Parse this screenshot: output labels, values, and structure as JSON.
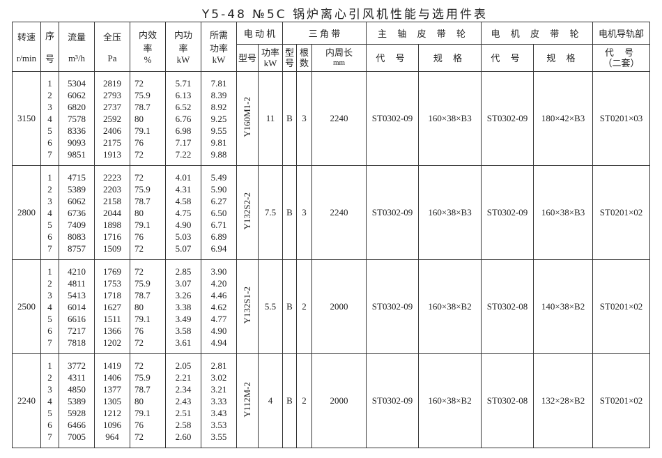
{
  "title": "Y5-48 №5C 锅炉离心引风机性能与选用件表",
  "header": {
    "speed": "转速",
    "speed_unit": "r/min",
    "seq": "序",
    "seq2": "号",
    "flow": "流量",
    "flow_unit": "m³/h",
    "pressure": "全压",
    "pressure_unit": "Pa",
    "eff": "内效",
    "eff2": "率",
    "eff_unit": "%",
    "ipower": "内功",
    "ipower2": "率",
    "ipower_unit": "kW",
    "rpower": "所需",
    "rpower2": "功率",
    "rpower_unit": "kW",
    "motor": "电 动 机",
    "motor_model": "型号",
    "motor_power": "功率",
    "motor_power_unit": "kW",
    "belt": "三 角 带",
    "belt_type": "型号",
    "belt_count": "根数",
    "belt_len": "内周长",
    "belt_len_unit": "mm",
    "main_pulley": "主 轴 皮 带 轮",
    "motor_pulley": "电 机 皮 带 轮",
    "code": "代 号",
    "spec": "规 格",
    "rail": "电机导轨部",
    "rail_code": "代 号",
    "rail_sets": "（二套）"
  },
  "blocks": [
    {
      "speed": "3150",
      "seq": [
        "1",
        "2",
        "3",
        "4",
        "5",
        "6",
        "7"
      ],
      "flow": [
        "5304",
        "6062",
        "6820",
        "7578",
        "8336",
        "9093",
        "9851"
      ],
      "pressure": [
        "2819",
        "2793",
        "2737",
        "2592",
        "2406",
        "2175",
        "1913"
      ],
      "eff": [
        "72",
        "75.9",
        "78.7",
        "80",
        "79.1",
        "76",
        "72"
      ],
      "ipower": [
        "5.71",
        "6.13",
        "6.52",
        "6.76",
        "6.98",
        "7.17",
        "7.22"
      ],
      "rpower": [
        "7.81",
        "8.39",
        "8.92",
        "9.25",
        "9.55",
        "9.81",
        "9.88"
      ],
      "motor_model": "Y160M1-2",
      "motor_power": "11",
      "belt_type": "B",
      "belt_count": "3",
      "belt_len": "2240",
      "main_code": "ST0302-09",
      "main_spec": "160×38×B3",
      "motor_code": "ST0302-09",
      "motor_spec": "180×42×B3",
      "rail": "ST0201×03"
    },
    {
      "speed": "2800",
      "seq": [
        "1",
        "2",
        "3",
        "4",
        "5",
        "6",
        "7"
      ],
      "flow": [
        "4715",
        "5389",
        "6062",
        "6736",
        "7409",
        "8083",
        "8757"
      ],
      "pressure": [
        "2223",
        "2203",
        "2158",
        "2044",
        "1898",
        "1716",
        "1509"
      ],
      "eff": [
        "72",
        "75.9",
        "78.7",
        "80",
        "79.1",
        "76",
        "72"
      ],
      "ipower": [
        "4.01",
        "4.31",
        "4.58",
        "4.75",
        "4.90",
        "5.03",
        "5.07"
      ],
      "rpower": [
        "5.49",
        "5.90",
        "6.27",
        "6.50",
        "6.71",
        "6.89",
        "6.94"
      ],
      "motor_model": "Y132S2-2",
      "motor_power": "7.5",
      "belt_type": "B",
      "belt_count": "3",
      "belt_len": "2240",
      "main_code": "ST0302-09",
      "main_spec": "160×38×B3",
      "motor_code": "ST0302-09",
      "motor_spec": "160×38×B3",
      "rail": "ST0201×02"
    },
    {
      "speed": "2500",
      "seq": [
        "1",
        "2",
        "3",
        "4",
        "5",
        "6",
        "7"
      ],
      "flow": [
        "4210",
        "4811",
        "5413",
        "6014",
        "6616",
        "7217",
        "7818"
      ],
      "pressure": [
        "1769",
        "1753",
        "1718",
        "1627",
        "1511",
        "1366",
        "1202"
      ],
      "eff": [
        "72",
        "75.9",
        "78.7",
        "80",
        "79.1",
        "76",
        "72"
      ],
      "ipower": [
        "2.85",
        "3.07",
        "3.26",
        "3.38",
        "3.49",
        "3.58",
        "3.61"
      ],
      "rpower": [
        "3.90",
        "4.20",
        "4.46",
        "4.62",
        "4.77",
        "4.90",
        "4.94"
      ],
      "motor_model": "Y132S1-2",
      "motor_power": "5.5",
      "belt_type": "B",
      "belt_count": "2",
      "belt_len": "2000",
      "main_code": "ST0302-09",
      "main_spec": "160×38×B2",
      "motor_code": "ST0302-08",
      "motor_spec": "140×38×B2",
      "rail": "ST0201×02"
    },
    {
      "speed": "2240",
      "seq": [
        "1",
        "2",
        "3",
        "4",
        "5",
        "6",
        "7"
      ],
      "flow": [
        "3772",
        "4311",
        "4850",
        "5389",
        "5928",
        "6466",
        "7005"
      ],
      "pressure": [
        "1419",
        "1406",
        "1377",
        "1305",
        "1212",
        "1096",
        "964"
      ],
      "eff": [
        "72",
        "75.9",
        "78.7",
        "80",
        "79.1",
        "76",
        "72"
      ],
      "ipower": [
        "2.05",
        "2.21",
        "2.34",
        "2.43",
        "2.51",
        "2.58",
        "2.60"
      ],
      "rpower": [
        "2.81",
        "3.02",
        "3.21",
        "3.33",
        "3.43",
        "3.53",
        "3.55"
      ],
      "motor_model": "Y112M-2",
      "motor_power": "4",
      "belt_type": "B",
      "belt_count": "2",
      "belt_len": "2000",
      "main_code": "ST0302-09",
      "main_spec": "160×38×B2",
      "motor_code": "ST0302-08",
      "motor_spec": "132×28×B2",
      "rail": "ST0201×02"
    }
  ]
}
